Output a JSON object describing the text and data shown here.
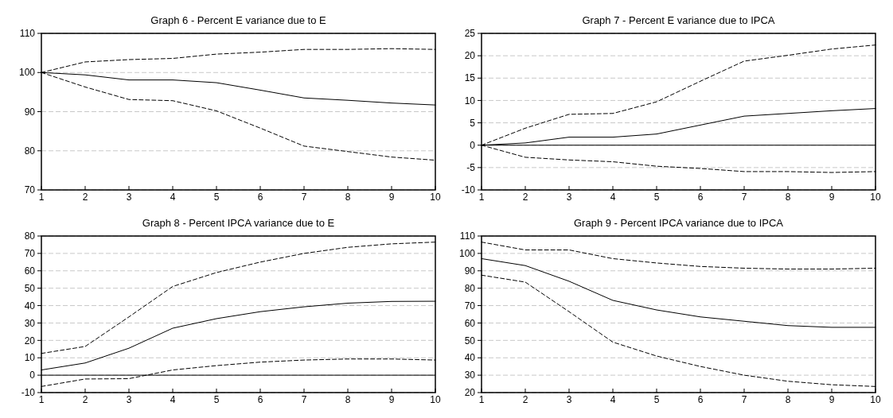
{
  "chart_data": [
    {
      "type": "line",
      "title": "Graph 6 - Percent E variance due to E",
      "x": [
        1,
        2,
        3,
        4,
        5,
        6,
        7,
        8,
        9,
        10
      ],
      "xlim": [
        1,
        10
      ],
      "xticks": [
        1,
        2,
        3,
        4,
        5,
        6,
        7,
        8,
        9,
        10
      ],
      "ylim": [
        70,
        110
      ],
      "yticks": [
        70,
        80,
        90,
        100,
        110
      ],
      "grid": "y",
      "series": [
        {
          "color": "#000000",
          "line_style": "solid",
          "values": [
            100,
            99.4,
            98.1,
            98.1,
            97.4,
            95.5,
            93.5,
            92.9,
            92.2,
            91.7
          ]
        },
        {
          "color": "#000000",
          "line_style": "dashed",
          "values": [
            100,
            102.7,
            103.3,
            103.6,
            104.7,
            105.2,
            105.9,
            105.9,
            106.1,
            105.9
          ]
        },
        {
          "color": "#000000",
          "line_style": "dashed",
          "values": [
            100,
            96.3,
            93.1,
            92.8,
            90.2,
            85.8,
            81.2,
            79.8,
            78.4,
            77.6
          ]
        }
      ]
    },
    {
      "type": "line",
      "title": "Graph 7 - Percent E variance due to IPCA",
      "x": [
        1,
        2,
        3,
        4,
        5,
        6,
        7,
        8,
        9,
        10
      ],
      "xlim": [
        1,
        10
      ],
      "xticks": [
        1,
        2,
        3,
        4,
        5,
        6,
        7,
        8,
        9,
        10
      ],
      "ylim": [
        -10,
        25
      ],
      "yticks": [
        -10,
        -5,
        0,
        5,
        10,
        15,
        20,
        25
      ],
      "grid": "y",
      "ref_lines": [
        {
          "axis": "y",
          "value": 0,
          "color": "#000000",
          "line_style": "solid"
        }
      ],
      "series": [
        {
          "color": "#000000",
          "line_style": "solid",
          "values": [
            0,
            0.5,
            1.8,
            1.8,
            2.5,
            4.5,
            6.5,
            7.1,
            7.7,
            8.2
          ]
        },
        {
          "color": "#000000",
          "line_style": "dashed",
          "values": [
            0,
            3.8,
            6.9,
            7.1,
            9.7,
            14.3,
            18.8,
            20.1,
            21.5,
            22.4
          ]
        },
        {
          "color": "#000000",
          "line_style": "dashed",
          "values": [
            0,
            -2.7,
            -3.3,
            -3.7,
            -4.7,
            -5.2,
            -5.9,
            -5.9,
            -6.1,
            -5.9
          ]
        }
      ]
    },
    {
      "type": "line",
      "title": "Graph 8 - Percent IPCA variance due to E",
      "x": [
        1,
        2,
        3,
        4,
        5,
        6,
        7,
        8,
        9,
        10
      ],
      "xlim": [
        1,
        10
      ],
      "xticks": [
        1,
        2,
        3,
        4,
        5,
        6,
        7,
        8,
        9,
        10
      ],
      "ylim": [
        -10,
        80
      ],
      "yticks": [
        -10,
        0,
        10,
        20,
        30,
        40,
        50,
        60,
        70,
        80
      ],
      "grid": "y",
      "ref_lines": [
        {
          "axis": "y",
          "value": 0,
          "color": "#000000",
          "line_style": "solid"
        }
      ],
      "series": [
        {
          "color": "#000000",
          "line_style": "solid",
          "values": [
            3,
            7,
            15.5,
            27,
            32.5,
            36.5,
            39.3,
            41.4,
            42.4,
            42.5
          ]
        },
        {
          "color": "#000000",
          "line_style": "dashed",
          "values": [
            12.5,
            16.5,
            33.5,
            51,
            59,
            65,
            70,
            73.5,
            75.5,
            76.5
          ]
        },
        {
          "color": "#000000",
          "line_style": "dashed",
          "values": [
            -6.5,
            -2.2,
            -2,
            3,
            5.5,
            7.5,
            8.7,
            9.3,
            9.3,
            8.7
          ]
        }
      ]
    },
    {
      "type": "line",
      "title": "Graph 9 - Percent IPCA variance due to IPCA",
      "x": [
        1,
        2,
        3,
        4,
        5,
        6,
        7,
        8,
        9,
        10
      ],
      "xlim": [
        1,
        10
      ],
      "xticks": [
        1,
        2,
        3,
        4,
        5,
        6,
        7,
        8,
        9,
        10
      ],
      "ylim": [
        20,
        110
      ],
      "yticks": [
        20,
        30,
        40,
        50,
        60,
        70,
        80,
        90,
        100,
        110
      ],
      "grid": "y",
      "series": [
        {
          "color": "#000000",
          "line_style": "solid",
          "values": [
            97,
            93,
            84,
            73,
            67.5,
            63.5,
            61,
            58.5,
            57.5,
            57.5
          ]
        },
        {
          "color": "#000000",
          "line_style": "dashed",
          "values": [
            106.5,
            102,
            102,
            97,
            94.5,
            92.5,
            91.5,
            91,
            91,
            91.5
          ]
        },
        {
          "color": "#000000",
          "line_style": "dashed",
          "values": [
            87.5,
            83.5,
            66.5,
            49,
            41,
            35,
            30,
            26.5,
            24.5,
            23.5
          ]
        }
      ]
    }
  ]
}
